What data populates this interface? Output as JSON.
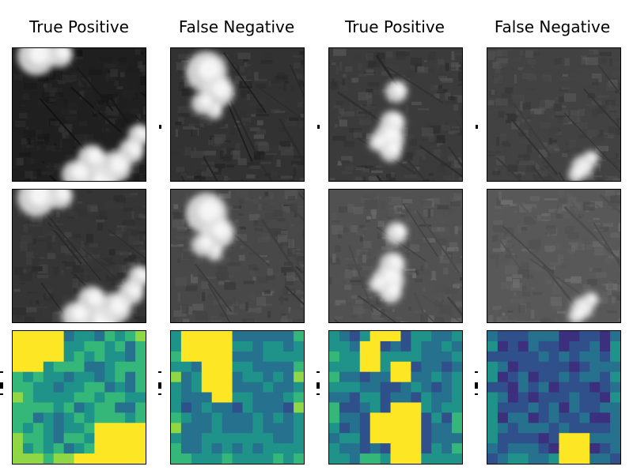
{
  "figure": {
    "columns": [
      {
        "title": "True Positive"
      },
      {
        "title": "False Negative"
      },
      {
        "title": "True Positive"
      },
      {
        "title": "False Negative"
      }
    ],
    "rows": [
      {
        "kind": "grayscale-image"
      },
      {
        "kind": "grayscale-image"
      },
      {
        "kind": "heatmap"
      }
    ],
    "heatmap_colormap": [
      "#3b2f7e",
      "#30508c",
      "#26718e",
      "#1f938a",
      "#35b779",
      "#8fd744",
      "#fde725"
    ],
    "image_background": "#1a1a1a"
  }
}
